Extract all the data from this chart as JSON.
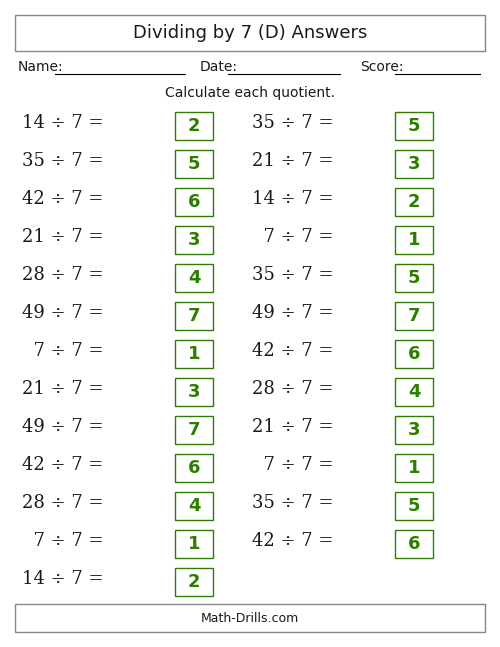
{
  "title": "Dividing by 7 (D) Answers",
  "subtitle": "Calculate each quotient.",
  "footer": "Math-Drills.com",
  "name_label": "Name:",
  "date_label": "Date:",
  "score_label": "Score:",
  "left_problems": [
    {
      "problem": "14 ÷ 7 =",
      "answer": "2"
    },
    {
      "problem": "35 ÷ 7 =",
      "answer": "5"
    },
    {
      "problem": "42 ÷ 7 =",
      "answer": "6"
    },
    {
      "problem": "21 ÷ 7 =",
      "answer": "3"
    },
    {
      "problem": "28 ÷ 7 =",
      "answer": "4"
    },
    {
      "problem": "49 ÷ 7 =",
      "answer": "7"
    },
    {
      "problem": "  7 ÷ 7 =",
      "answer": "1"
    },
    {
      "problem": "21 ÷ 7 =",
      "answer": "3"
    },
    {
      "problem": "49 ÷ 7 =",
      "answer": "7"
    },
    {
      "problem": "42 ÷ 7 =",
      "answer": "6"
    },
    {
      "problem": "28 ÷ 7 =",
      "answer": "4"
    },
    {
      "problem": "  7 ÷ 7 =",
      "answer": "1"
    },
    {
      "problem": "14 ÷ 7 =",
      "answer": "2"
    }
  ],
  "right_problems": [
    {
      "problem": "35 ÷ 7 =",
      "answer": "5"
    },
    {
      "problem": "21 ÷ 7 =",
      "answer": "3"
    },
    {
      "problem": "14 ÷ 7 =",
      "answer": "2"
    },
    {
      "problem": "  7 ÷ 7 =",
      "answer": "1"
    },
    {
      "problem": "35 ÷ 7 =",
      "answer": "5"
    },
    {
      "problem": "49 ÷ 7 =",
      "answer": "7"
    },
    {
      "problem": "42 ÷ 7 =",
      "answer": "6"
    },
    {
      "problem": "28 ÷ 7 =",
      "answer": "4"
    },
    {
      "problem": "21 ÷ 7 =",
      "answer": "3"
    },
    {
      "problem": "  7 ÷ 7 =",
      "answer": "1"
    },
    {
      "problem": "35 ÷ 7 =",
      "answer": "5"
    },
    {
      "problem": "42 ÷ 7 =",
      "answer": "6"
    }
  ],
  "bg_color": "#ffffff",
  "text_color": "#1a1a1a",
  "answer_color": "#2e7d00",
  "box_edge_color": "#2e7d00",
  "title_fontsize": 13,
  "problem_fontsize": 13,
  "answer_fontsize": 13,
  "header_fontsize": 10,
  "footer_fontsize": 9,
  "fig_width": 5.0,
  "fig_height": 6.47,
  "dpi": 100
}
